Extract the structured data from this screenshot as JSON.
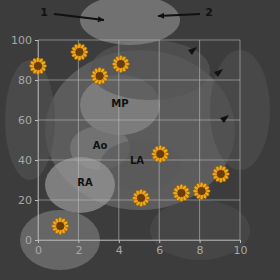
{
  "chart_data": {
    "type": "scatter",
    "x": [
      0,
      2.05,
      3.05,
      4.1,
      6.05,
      5.1,
      7.1,
      8.1,
      9.05,
      1.1
    ],
    "values": [
      87,
      94,
      82,
      88,
      43,
      21,
      23.5,
      24.5,
      33,
      7
    ],
    "color": "#f2a81d",
    "marker": "sunflower",
    "xlim": [
      0,
      10
    ],
    "xticks": [
      0,
      2,
      4,
      6,
      8,
      10
    ],
    "ylim": [
      0,
      100
    ],
    "yticks": [
      0,
      20,
      40,
      60,
      80,
      100
    ],
    "grid": true,
    "annotations": [
      "1",
      "2",
      "MP",
      "Ao",
      "LA",
      "RA"
    ]
  }
}
